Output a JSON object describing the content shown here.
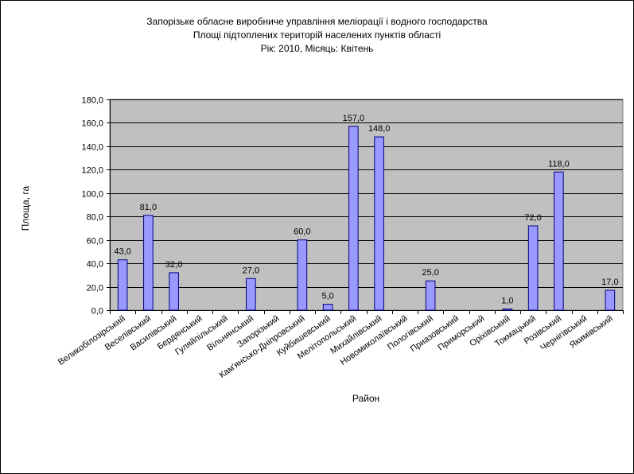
{
  "chart_data": {
    "type": "bar",
    "title_lines": [
      "Запорізьке обласне виробниче управління меліорації і водного господарства",
      "Площі підтоплених територій населених пунктів області",
      "Рік: 2010, Місяць: Квітень"
    ],
    "xlabel": "Район",
    "ylabel": "Площа, га",
    "ylim": [
      0,
      180
    ],
    "ytick_step": 20,
    "ytick_labels": [
      "0,0",
      "20,0",
      "40,0",
      "60,0",
      "80,0",
      "100,0",
      "120,0",
      "140,0",
      "160,0",
      "180,0"
    ],
    "grid": true,
    "categories": [
      "Великобілозірський",
      "Веселівський",
      "Василівський",
      "Бердянський",
      "Гуляйпільський",
      "Вільнянський",
      "Запорізький",
      "Кам'янсько-Дніпровський",
      "Куйбишевський",
      "Мелітопольський",
      "Михайлівський",
      "Новомиколаївський",
      "Пологівський",
      "Приазовський",
      "Приморський",
      "Оріхівський",
      "Токмацький",
      "Розівський",
      "Чернігівський",
      "Якимівський"
    ],
    "values": [
      43,
      81,
      32,
      null,
      null,
      27,
      null,
      60,
      5,
      157,
      148,
      null,
      25,
      null,
      null,
      1,
      72,
      118,
      null,
      17
    ],
    "data_labels": [
      "43,0",
      "81,0",
      "32,0",
      "",
      "",
      "27,0",
      "",
      "60,0",
      "5,0",
      "157,0",
      "148,0",
      "",
      "25,0",
      "",
      "",
      "1,0",
      "72,0",
      "118,0",
      "",
      "17,0"
    ],
    "colors": {
      "plot_background": "#c0c0c0",
      "bar_fill": "#9999ff",
      "bar_stroke": "#000080",
      "gridline": "#000000"
    }
  }
}
